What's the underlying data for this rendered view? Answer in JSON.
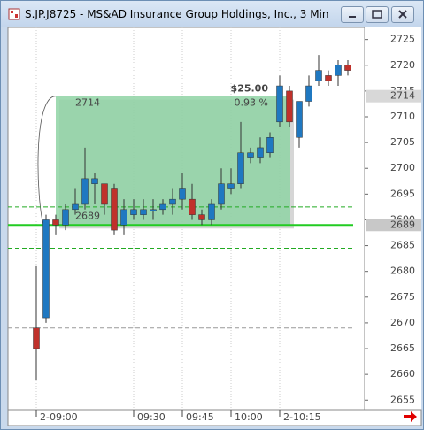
{
  "window_title": "S.JP.J8725 - MS&AD Insurance Group Holdings, Inc., 3 Min",
  "chart_data": {
    "type": "candlestick",
    "categories": [
      "2-09:00",
      null,
      null,
      null,
      null,
      null,
      null,
      null,
      null,
      null,
      "09:30",
      null,
      null,
      null,
      null,
      "09:45",
      null,
      null,
      null,
      null,
      "10:00",
      null,
      null,
      null,
      null,
      "2-10:15",
      null,
      null,
      null,
      null,
      null,
      null,
      null
    ],
    "open": [
      2669,
      2671,
      2690,
      2689,
      2692,
      2693,
      2697,
      2697,
      2696,
      2689,
      2691,
      2691,
      2692,
      2692,
      2693,
      2694,
      2694,
      2691,
      2690,
      2693,
      2696,
      2697,
      2702,
      2702,
      2703,
      2709,
      2715,
      2706,
      2713,
      2717,
      2718,
      2718,
      2720
    ],
    "high": [
      2681,
      2691,
      2691,
      2693,
      2696,
      2704,
      2699,
      2697,
      2697,
      2694,
      2694,
      2694,
      2694,
      2694,
      2696,
      2699,
      2697,
      2692,
      2694,
      2700,
      2700,
      2709,
      2704,
      2706,
      2707,
      2718,
      2716,
      2713,
      2718,
      2722,
      2719,
      2721,
      2721
    ],
    "low": [
      2659,
      2670,
      2687,
      2688,
      2691,
      2692,
      2693,
      2691,
      2687,
      2687,
      2690,
      2690,
      2690,
      2691,
      2691,
      2692,
      2690,
      2689,
      2689,
      2692,
      2695,
      2696,
      2701,
      2701,
      2702,
      2708,
      2708,
      2704,
      2712,
      2716,
      2716,
      2716,
      2718
    ],
    "close": [
      2665,
      2690,
      2689,
      2692,
      2693,
      2698,
      2698,
      2693,
      2688,
      2692,
      2692,
      2692,
      2692,
      2693,
      2694,
      2696,
      2691,
      2690,
      2693,
      2697,
      2697,
      2703,
      2703,
      2704,
      2706,
      2716,
      2709,
      2713,
      2716,
      2719,
      2717,
      2720,
      2719
    ],
    "up_color": "#1f78c1",
    "down_color": "#c0312b",
    "ylim": [
      2653.5,
      2727
    ],
    "yticks": [
      2655,
      2660,
      2665,
      2670,
      2675,
      2680,
      2685,
      2690,
      2695,
      2700,
      2705,
      2710,
      2715,
      2720,
      2725
    ],
    "grid": true,
    "reference_lines": [
      {
        "value": 2689,
        "color": "#22cc22",
        "dashed": false
      },
      {
        "value": 2692.5,
        "color": "#22aa22",
        "dashed": true
      },
      {
        "value": 2684.5,
        "color": "#22aa22",
        "dashed": true
      },
      {
        "value": 2669,
        "color": "#999999",
        "dashed": true
      }
    ],
    "price_markers": [
      2714,
      2689
    ],
    "measure": {
      "high": 2714,
      "low": 2689,
      "change_label": "$25.00",
      "percent_label": "0.93 %",
      "color": "#8fd3a4"
    }
  }
}
